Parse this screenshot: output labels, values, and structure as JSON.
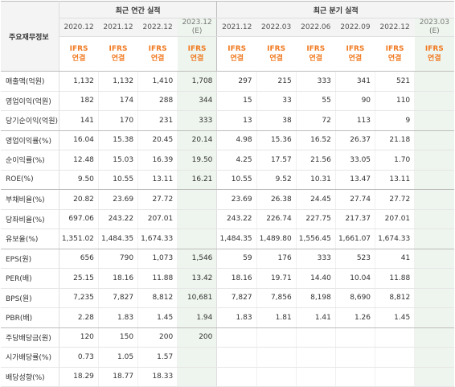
{
  "table": {
    "row_header": "주요재무정보",
    "group_annual": "최근 연간 실적",
    "group_quarter": "최근 분기 실적",
    "annual_periods": [
      {
        "label": "2020.12",
        "est": false,
        "est_note": ""
      },
      {
        "label": "2021.12",
        "est": false,
        "est_note": ""
      },
      {
        "label": "2022.12",
        "est": false,
        "est_note": ""
      },
      {
        "label": "2023.12",
        "est": true,
        "est_note": "(E)"
      }
    ],
    "quarter_periods": [
      {
        "label": "2021.12",
        "est": false,
        "est_note": ""
      },
      {
        "label": "2022.03",
        "est": false,
        "est_note": ""
      },
      {
        "label": "2022.06",
        "est": false,
        "est_note": ""
      },
      {
        "label": "2022.09",
        "est": false,
        "est_note": ""
      },
      {
        "label": "2022.12",
        "est": false,
        "est_note": ""
      },
      {
        "label": "2023.03",
        "est": true,
        "est_note": "(E)"
      }
    ],
    "ifrs_line1": "IFRS",
    "ifrs_line2": "연결",
    "rows": [
      {
        "label": "매출액(억원)",
        "values": [
          "1,132",
          "1,132",
          "1,410",
          "1,708",
          "297",
          "215",
          "333",
          "341",
          "521",
          ""
        ]
      },
      {
        "label": "영업이익(억원)",
        "values": [
          "182",
          "174",
          "288",
          "344",
          "15",
          "33",
          "55",
          "90",
          "110",
          ""
        ]
      },
      {
        "label": "당기순이익(억원)",
        "values": [
          "141",
          "170",
          "231",
          "333",
          "13",
          "38",
          "72",
          "113",
          "9",
          ""
        ]
      },
      {
        "label": "영업이익률(%)",
        "values": [
          "16.04",
          "15.38",
          "20.45",
          "20.14",
          "4.98",
          "15.36",
          "16.52",
          "26.37",
          "21.18",
          ""
        ]
      },
      {
        "label": "순이익률(%)",
        "values": [
          "12.48",
          "15.03",
          "16.39",
          "19.50",
          "4.25",
          "17.57",
          "21.56",
          "33.05",
          "1.70",
          ""
        ]
      },
      {
        "label": "ROE(%)",
        "values": [
          "9.50",
          "10.55",
          "13.11",
          "16.21",
          "10.55",
          "9.52",
          "10.31",
          "13.47",
          "13.11",
          ""
        ]
      },
      {
        "label": "부채비율(%)",
        "values": [
          "20.82",
          "23.69",
          "27.72",
          "",
          "23.69",
          "26.38",
          "24.45",
          "27.74",
          "27.72",
          ""
        ]
      },
      {
        "label": "당좌비율(%)",
        "values": [
          "697.06",
          "243.22",
          "207.01",
          "",
          "243.22",
          "226.74",
          "227.75",
          "217.37",
          "207.01",
          ""
        ]
      },
      {
        "label": "유보율(%)",
        "values": [
          "1,351.02",
          "1,484.35",
          "1,674.33",
          "",
          "1,484.35",
          "1,489.80",
          "1,556.45",
          "1,661.07",
          "1,674.33",
          ""
        ]
      },
      {
        "label": "EPS(원)",
        "values": [
          "656",
          "790",
          "1,073",
          "1,546",
          "59",
          "176",
          "333",
          "523",
          "41",
          ""
        ]
      },
      {
        "label": "PER(배)",
        "values": [
          "25.15",
          "18.16",
          "11.88",
          "13.42",
          "18.16",
          "19.71",
          "14.40",
          "10.04",
          "11.88",
          ""
        ]
      },
      {
        "label": "BPS(원)",
        "values": [
          "7,235",
          "7,827",
          "8,812",
          "10,681",
          "7,827",
          "7,856",
          "8,198",
          "8,690",
          "8,812",
          ""
        ]
      },
      {
        "label": "PBR(배)",
        "values": [
          "2.28",
          "1.83",
          "1.45",
          "1.94",
          "1.83",
          "1.81",
          "1.41",
          "1.26",
          "1.45",
          ""
        ]
      },
      {
        "label": "주당배당금(원)",
        "values": [
          "120",
          "150",
          "200",
          "200",
          "",
          "",
          "",
          "",
          "",
          ""
        ]
      },
      {
        "label": "시가배당률(%)",
        "values": [
          "0.73",
          "1.05",
          "1.57",
          "",
          "",
          "",
          "",
          "",
          "",
          ""
        ]
      },
      {
        "label": "배당성향(%)",
        "values": [
          "18.29",
          "18.77",
          "18.33",
          "",
          "",
          "",
          "",
          "",
          "",
          ""
        ]
      }
    ],
    "group_end_rows": [
      2,
      5,
      8,
      12
    ]
  }
}
